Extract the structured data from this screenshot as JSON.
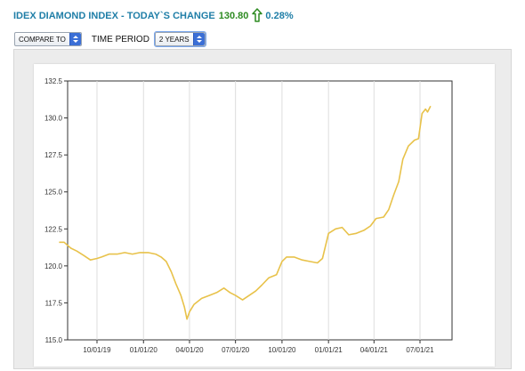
{
  "header": {
    "title": "IDEX DIAMOND INDEX - TODAY`S CHANGE",
    "change_value": "130.80",
    "change_percent": "0.28%",
    "arrow_icon": "up-arrow-icon",
    "colors": {
      "title": "#1f7ea7",
      "value": "#2e8b22",
      "arrow": "#2e8b22"
    }
  },
  "controls": {
    "compare_to": "COMPARE TO",
    "time_period_label": "TIME PERIOD",
    "time_period_value": "2 YEARS"
  },
  "chart_data": {
    "type": "line",
    "title": "",
    "xlabel": "",
    "ylabel": "",
    "ylim": [
      115.0,
      132.5
    ],
    "y_ticks": [
      "115.0",
      "117.5",
      "120.0",
      "122.5",
      "125.0",
      "127.5",
      "130.0",
      "132.5"
    ],
    "x_ticks": [
      "10/01/19",
      "01/01/20",
      "04/01/20",
      "07/01/20",
      "10/01/20",
      "01/01/21",
      "04/01/21",
      "07/01/21"
    ],
    "grid": "vertical lines at x ticks",
    "line_color": "#e8c24a",
    "series": [
      {
        "name": "",
        "points": [
          [
            "2019-07-18",
            121.6
          ],
          [
            "2019-07-28",
            121.6
          ],
          [
            "2019-08-10",
            121.2
          ],
          [
            "2019-08-22",
            121.0
          ],
          [
            "2019-09-05",
            120.7
          ],
          [
            "2019-09-18",
            120.4
          ],
          [
            "2019-10-01",
            120.5
          ],
          [
            "2019-10-10",
            120.6
          ],
          [
            "2019-10-25",
            120.8
          ],
          [
            "2019-11-10",
            120.8
          ],
          [
            "2019-11-25",
            120.9
          ],
          [
            "2019-12-10",
            120.8
          ],
          [
            "2019-12-25",
            120.9
          ],
          [
            "2020-01-10",
            120.9
          ],
          [
            "2020-01-25",
            120.8
          ],
          [
            "2020-02-05",
            120.6
          ],
          [
            "2020-02-15",
            120.3
          ],
          [
            "2020-02-25",
            119.6
          ],
          [
            "2020-03-05",
            118.8
          ],
          [
            "2020-03-15",
            118.0
          ],
          [
            "2020-03-22",
            117.2
          ],
          [
            "2020-03-27",
            116.4
          ],
          [
            "2020-04-01",
            116.9
          ],
          [
            "2020-04-10",
            117.4
          ],
          [
            "2020-04-25",
            117.8
          ],
          [
            "2020-05-10",
            118.0
          ],
          [
            "2020-05-25",
            118.2
          ],
          [
            "2020-06-08",
            118.5
          ],
          [
            "2020-06-20",
            118.2
          ],
          [
            "2020-07-01",
            118.0
          ],
          [
            "2020-07-15",
            117.7
          ],
          [
            "2020-07-28",
            118.0
          ],
          [
            "2020-08-10",
            118.3
          ],
          [
            "2020-08-22",
            118.7
          ],
          [
            "2020-09-05",
            119.2
          ],
          [
            "2020-09-20",
            119.4
          ],
          [
            "2020-10-01",
            120.3
          ],
          [
            "2020-10-10",
            120.6
          ],
          [
            "2020-10-25",
            120.6
          ],
          [
            "2020-11-10",
            120.4
          ],
          [
            "2020-11-25",
            120.3
          ],
          [
            "2020-12-10",
            120.2
          ],
          [
            "2020-12-20",
            120.5
          ],
          [
            "2021-01-01",
            122.2
          ],
          [
            "2021-01-15",
            122.5
          ],
          [
            "2021-01-28",
            122.6
          ],
          [
            "2021-02-10",
            122.1
          ],
          [
            "2021-02-25",
            122.2
          ],
          [
            "2021-03-12",
            122.4
          ],
          [
            "2021-03-25",
            122.7
          ],
          [
            "2021-04-05",
            123.2
          ],
          [
            "2021-04-20",
            123.3
          ],
          [
            "2021-04-30",
            123.8
          ],
          [
            "2021-05-10",
            124.8
          ],
          [
            "2021-05-20",
            125.7
          ],
          [
            "2021-05-28",
            127.2
          ],
          [
            "2021-06-08",
            128.1
          ],
          [
            "2021-06-20",
            128.5
          ],
          [
            "2021-06-28",
            128.6
          ],
          [
            "2021-07-05",
            130.3
          ],
          [
            "2021-07-12",
            130.6
          ],
          [
            "2021-07-16",
            130.4
          ],
          [
            "2021-07-22",
            130.8
          ]
        ]
      }
    ]
  }
}
